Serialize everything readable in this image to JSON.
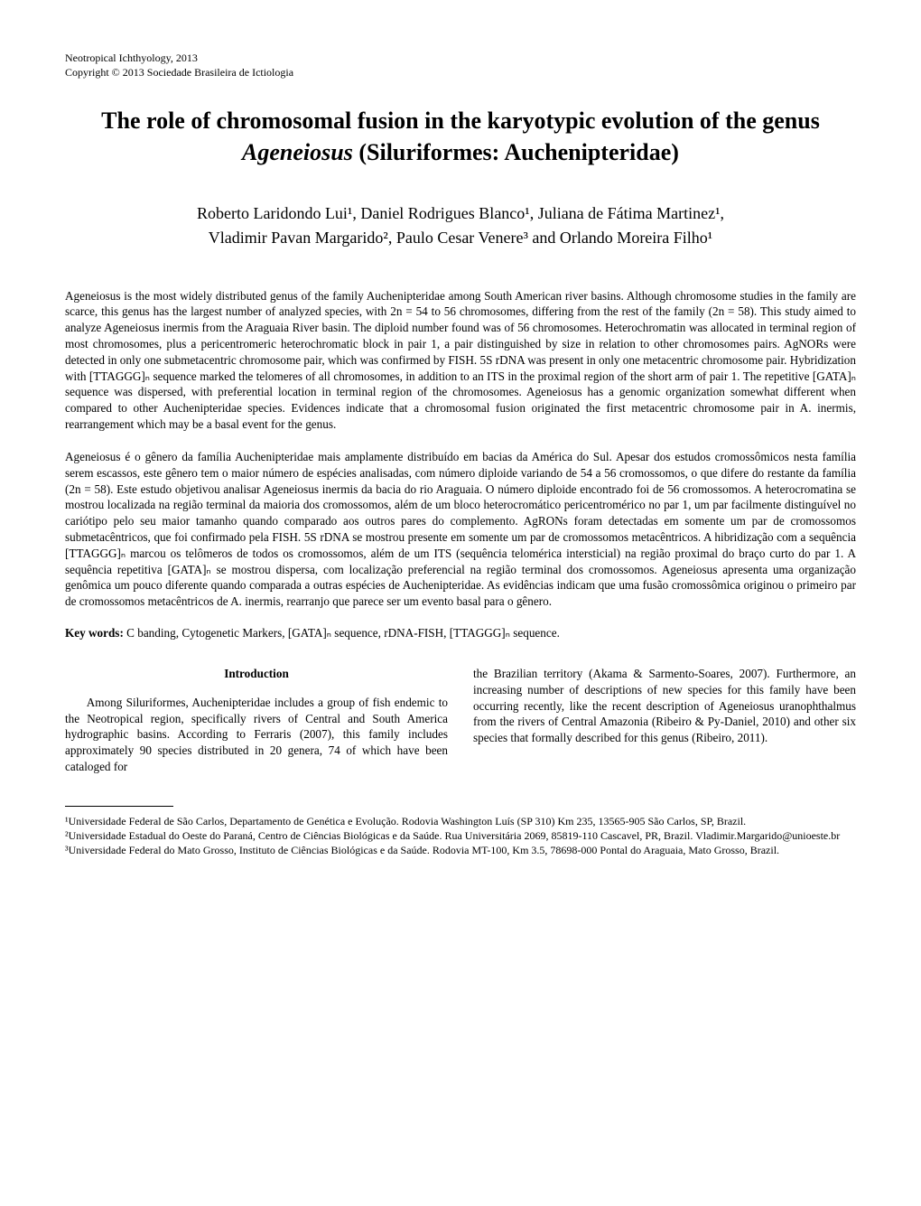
{
  "header": {
    "journal": "Neotropical Ichthyology, 2013",
    "copyright": "Copyright © 2013 Sociedade Brasileira de Ictiologia"
  },
  "title": {
    "line1_pre": "The role of chromosomal fusion in the karyotypic evolution of the genus",
    "line2_italic": "Ageneiosus",
    "line2_post": " (Siluriformes: Auchenipteridae)"
  },
  "authors": {
    "line1": "Roberto Laridondo Lui¹, Daniel Rodrigues Blanco¹, Juliana de Fátima Martinez¹,",
    "line2": "Vladimir Pavan Margarido², Paulo Cesar Venere³ and Orlando Moreira Filho¹"
  },
  "abstract_en": "Ageneiosus is the most widely distributed genus of the family Auchenipteridae among South American river basins. Although chromosome studies in the family are scarce, this genus has the largest number of analyzed species, with 2n = 54 to 56 chromosomes, differing from the rest of the family (2n = 58). This study aimed to analyze Ageneiosus inermis from the Araguaia River basin. The diploid number found was of 56 chromosomes. Heterochromatin was allocated in terminal region of most chromosomes, plus a pericentromeric heterochromatic block in pair 1, a pair distinguished by size in relation to other chromosomes pairs. AgNORs were detected in only one submetacentric chromosome pair, which was confirmed by FISH. 5S rDNA was present in only one metacentric chromosome pair. Hybridization with [TTAGGG]ₙ sequence marked the telomeres of all chromosomes, in addition to an ITS in the proximal region of the short arm of pair 1. The repetitive [GATA]ₙ sequence was dispersed, with preferential location in terminal region of the chromosomes. Ageneiosus has a genomic organization somewhat different when compared to other Auchenipteridae species. Evidences indicate that a chromosomal fusion originated the first metacentric chromosome pair in A. inermis, rearrangement which may be a basal event for the genus.",
  "abstract_pt": "Ageneiosus é o gênero da família Auchenipteridae mais amplamente distribuído em bacias da América do Sul. Apesar dos estudos cromossômicos nesta família serem escassos, este gênero tem o maior número de espécies analisadas, com número diploide variando de 54 a 56 cromossomos, o que difere do restante da família (2n = 58). Este estudo objetivou analisar Ageneiosus inermis da bacia do rio Araguaia. O número diploide encontrado foi de 56 cromossomos. A heterocromatina se mostrou localizada na região terminal da maioria dos cromossomos, além de um bloco heterocromático pericentromérico no par 1, um par facilmente distinguível no cariótipo pelo seu maior tamanho quando comparado aos outros pares do complemento. AgRONs foram detectadas em somente um par de cromossomos submetacêntricos, que foi confirmado pela FISH. 5S rDNA se mostrou presente em somente um par de cromossomos metacêntricos. A hibridização com a sequência [TTAGGG]ₙ marcou os telômeros de todos os cromossomos, além de um ITS (sequência telomérica intersticial) na região proximal do braço curto do par 1. A sequência repetitiva [GATA]ₙ se mostrou dispersa, com localização preferencial na região terminal dos cromossomos. Ageneiosus apresenta uma organização genômica um pouco diferente quando comparada a outras espécies de Auchenipteridae. As evidências indicam que uma fusão cromossômica originou o primeiro par de cromossomos metacêntricos de A. inermis, rearranjo que parece ser um evento basal para o gênero.",
  "keywords": {
    "label": "Key words:",
    "text": " C banding, Cytogenetic Markers, [GATA]ₙ sequence, rDNA-FISH, [TTAGGG]ₙ sequence."
  },
  "sections": {
    "introduction_head": "Introduction",
    "intro_col1": "Among Siluriformes, Auchenipteridae includes a group of fish endemic to the Neotropical region, specifically rivers of Central and South America hydrographic basins. According to Ferraris (2007), this family includes approximately 90 species distributed in 20 genera, 74 of which have been cataloged for",
    "intro_col2": "the Brazilian territory (Akama & Sarmento-Soares, 2007). Furthermore, an increasing number of descriptions of new species for this family have been occurring recently, like the recent description of Ageneiosus uranophthalmus from the rivers of Central Amazonia (Ribeiro & Py-Daniel, 2010) and other six species that formally described for this genus (Ribeiro, 2011)."
  },
  "footnotes": {
    "f1": "¹Universidade Federal de São Carlos, Departamento de Genética e Evolução. Rodovia Washington Luís (SP 310) Km 235, 13565-905 São Carlos, SP, Brazil.",
    "f2": "²Universidade Estadual do Oeste do Paraná, Centro de Ciências Biológicas e da Saúde. Rua Universitária 2069, 85819-110 Cascavel, PR, Brazil. Vladimir.Margarido@unioeste.br",
    "f3": "³Universidade Federal do Mato Grosso, Instituto de Ciências Biológicas e da Saúde. Rodovia MT-100, Km 3.5, 78698-000 Pontal do Araguaia, Mato Grosso, Brazil."
  }
}
